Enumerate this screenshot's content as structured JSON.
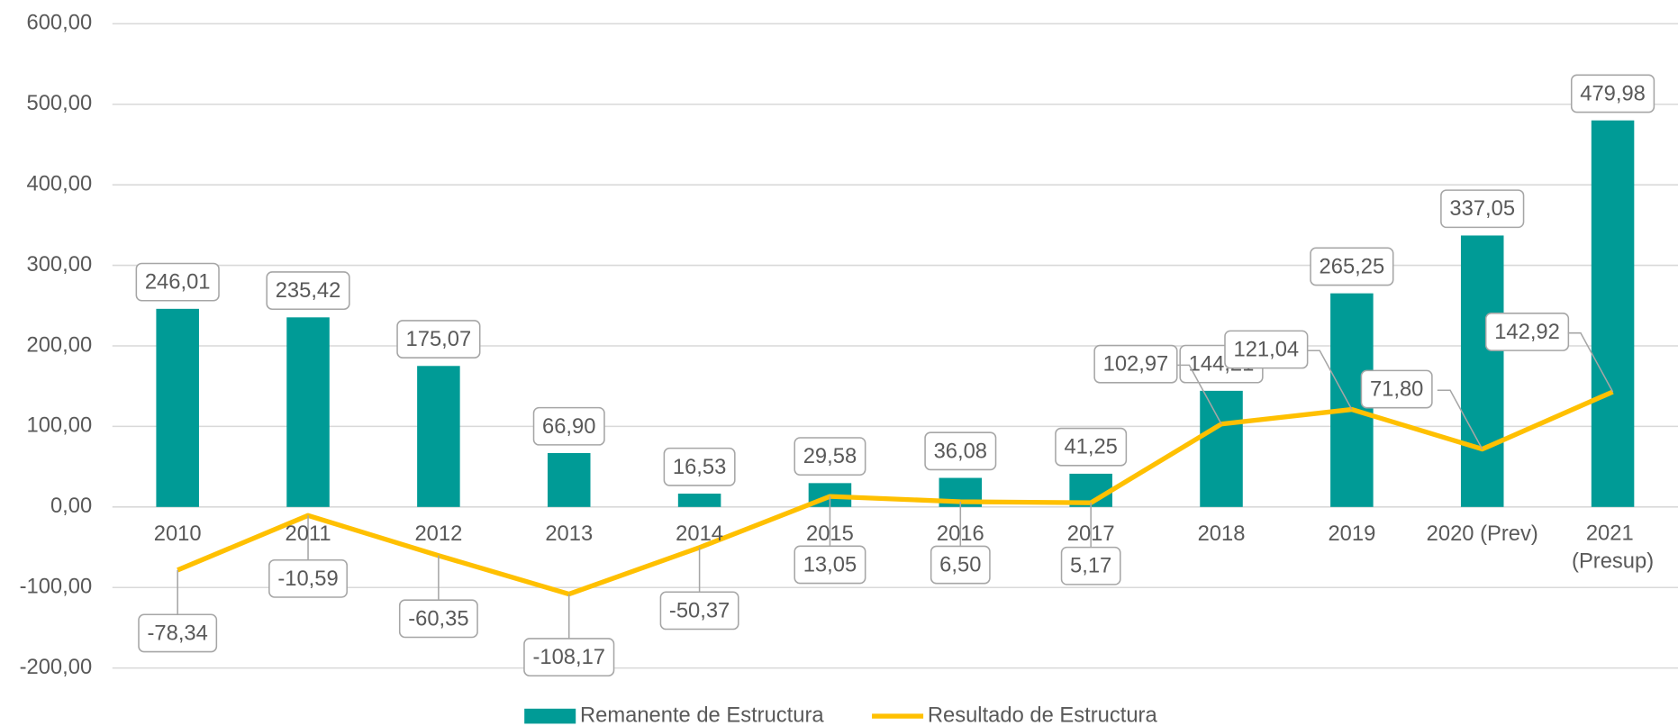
{
  "chart_data": {
    "type": "bar_line",
    "categories": [
      "2010",
      "2011",
      "2012",
      "2013",
      "2014",
      "2015",
      "2016",
      "2017",
      "2018",
      "2019",
      "2020 (Prev)",
      "2021 (Presup)"
    ],
    "series": [
      {
        "name": "Remanente de Estructura",
        "type": "bar",
        "color": "#009B96",
        "values": [
          246.01,
          235.42,
          175.07,
          66.9,
          16.53,
          29.58,
          36.08,
          41.25,
          144.21,
          265.25,
          337.05,
          479.98
        ],
        "value_labels": [
          "246,01",
          "235,42",
          "175,07",
          "66,90",
          "16,53",
          "29,58",
          "36,08",
          "41,25",
          "144,21",
          "265,25",
          "337,05",
          "479,98"
        ]
      },
      {
        "name": "Resultado de Estructura",
        "type": "line",
        "color": "#FFC000",
        "values": [
          -78.34,
          -10.59,
          -60.35,
          -108.17,
          -50.37,
          13.05,
          6.5,
          5.17,
          102.97,
          121.04,
          71.8,
          142.92
        ],
        "value_labels": [
          "-78,34",
          "-10,59",
          "-60,35",
          "-108,17",
          "-50,37",
          "13,05",
          "6,50",
          "5,17",
          "102,97",
          "121,04",
          "71,80",
          "142,92"
        ]
      }
    ],
    "ylim": [
      -200,
      600
    ],
    "yticks": [
      {
        "value": -200,
        "label": "-200,00"
      },
      {
        "value": -100,
        "label": "-100,00"
      },
      {
        "value": 0,
        "label": "0,00"
      },
      {
        "value": 100,
        "label": "100,00"
      },
      {
        "value": 200,
        "label": "200,00"
      },
      {
        "value": 300,
        "label": "300,00"
      },
      {
        "value": 400,
        "label": "400,00"
      },
      {
        "value": 500,
        "label": "500,00"
      },
      {
        "value": 600,
        "label": "600,00"
      }
    ],
    "grid": true,
    "legend": "bottom"
  }
}
